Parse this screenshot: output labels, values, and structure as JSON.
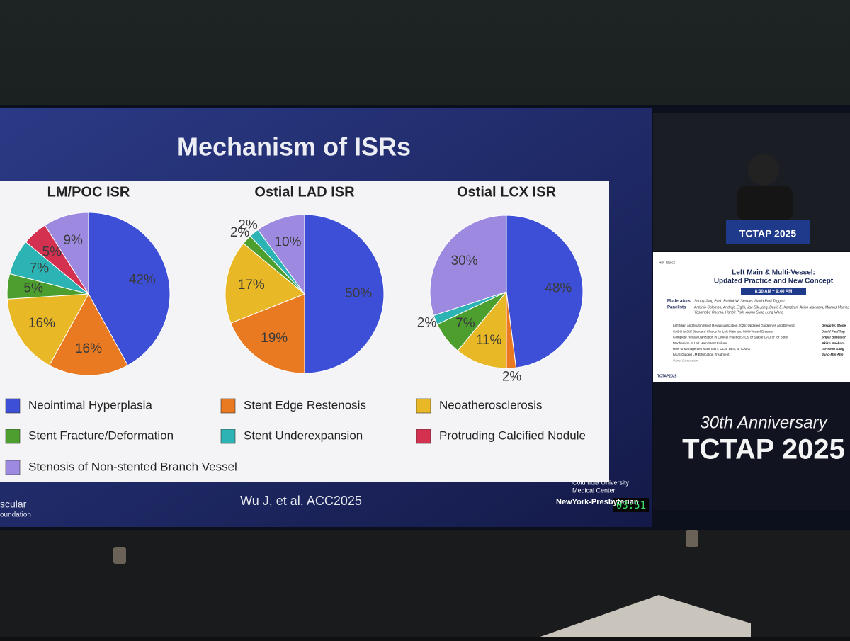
{
  "slide": {
    "title": "Mechanism of ISRs",
    "citation": "Wu J, et al. ACC2025",
    "logo_left": [
      "scular",
      "oundation"
    ],
    "logo_right": [
      "Columbia University",
      "Medical Center",
      "NewYork-Presbyterian"
    ],
    "timer": "03:51"
  },
  "chart_data": [
    {
      "type": "pie",
      "title": "LM/POC ISR",
      "categories": [
        "Neointimal Hyperplasia",
        "Stent Edge Restenosis",
        "Neoatherosclerosis",
        "Stent Fracture/Deformation",
        "Stent Underexpansion",
        "Protruding Calcified Nodule",
        "Stenosis of Non-stented Branch Vessel"
      ],
      "values": [
        42,
        16,
        16,
        5,
        7,
        5,
        9
      ],
      "value_labels": [
        "42%",
        "16%",
        "16%",
        "5%",
        "7%",
        "5%",
        "9%"
      ],
      "colors": [
        "#3d4fd6",
        "#e97a22",
        "#e9b826",
        "#4c9e2e",
        "#2cb3b3",
        "#d43050",
        "#9d8ae0"
      ]
    },
    {
      "type": "pie",
      "title": "Ostial LAD ISR",
      "categories": [
        "Neointimal Hyperplasia",
        "Stent Edge Restenosis",
        "Neoatherosclerosis",
        "Stent Fracture/Deformation",
        "Stent Underexpansion",
        "Stenosis of Non-stented Branch Vessel"
      ],
      "values": [
        50,
        19,
        17,
        2,
        2,
        10
      ],
      "value_labels": [
        "50%",
        "19%",
        "17%",
        "2%",
        "2%",
        "10%"
      ],
      "colors": [
        "#3d4fd6",
        "#e97a22",
        "#e9b826",
        "#4c9e2e",
        "#2cb3b3",
        "#9d8ae0"
      ]
    },
    {
      "type": "pie",
      "title": "Ostial LCX ISR",
      "categories": [
        "Neointimal Hyperplasia",
        "Stent Edge Restenosis",
        "Neoatherosclerosis",
        "Stent Fracture/Deformation",
        "Stent Underexpansion",
        "Stenosis of Non-stented Branch Vessel"
      ],
      "values": [
        48,
        2,
        11,
        7,
        2,
        30
      ],
      "value_labels": [
        "48%",
        "2%",
        "11%",
        "7%",
        "2%",
        "30%"
      ],
      "colors": [
        "#3d4fd6",
        "#e97a22",
        "#e9b826",
        "#4c9e2e",
        "#2cb3b3",
        "#9d8ae0"
      ]
    }
  ],
  "side_panel": {
    "anniversary": "30th Anniversary",
    "event": "TCTAP 2025",
    "podium": "TCTAP 2025",
    "program": {
      "tag": "Hot Topics",
      "title": [
        "Left Main & Multi-Vessel:",
        "Updated Practice and New Concept"
      ],
      "time": "8:30 AM ~ 9:40 AM",
      "roles": [
        {
          "role": "Moderators",
          "names": "Seung-Jung Park, Patrick W. Serruys, David Paul Taggart"
        },
        {
          "role": "Panelists",
          "names": "Antonio Colombo, Andreja Erglis, Jae Sik Jang, David E. Kandzari, Akiko Maehara, Mamas Mamas"
        }
      ],
      "extra_names": "Yoshinobu Onuma, Hanbit Park, Aaron Sung Lung Wong",
      "talks": [
        {
          "topic": "Left Main and Multi-Vessel Revascularization 2025: Updated Guidelines and Beyond",
          "speaker": "Gregg W. Stone"
        },
        {
          "topic": "CABG Is Still Standard Choice for Left Main and Multi-Vessel Disease",
          "speaker": "David Paul Tag"
        },
        {
          "topic": "Complete Revascularization in Clinical Practice: ACS or Stable CAD or for Both!",
          "speaker": "Sripal Bangalor"
        },
        {
          "topic": "Mechanism of Left Main Stent Failure",
          "speaker": "Akiko Maehara"
        },
        {
          "topic": "How to Manage Left Main ISR?: DCB, DES, or CABG",
          "speaker": "Do-Yoon Kang"
        },
        {
          "topic": "IVUS Guided LM Bifurcation Treatment",
          "speaker": "Jung-Min Ahn"
        },
        {
          "topic": "Panel Discussion",
          "speaker": null
        }
      ],
      "footer": "TCTAP2025"
    }
  }
}
